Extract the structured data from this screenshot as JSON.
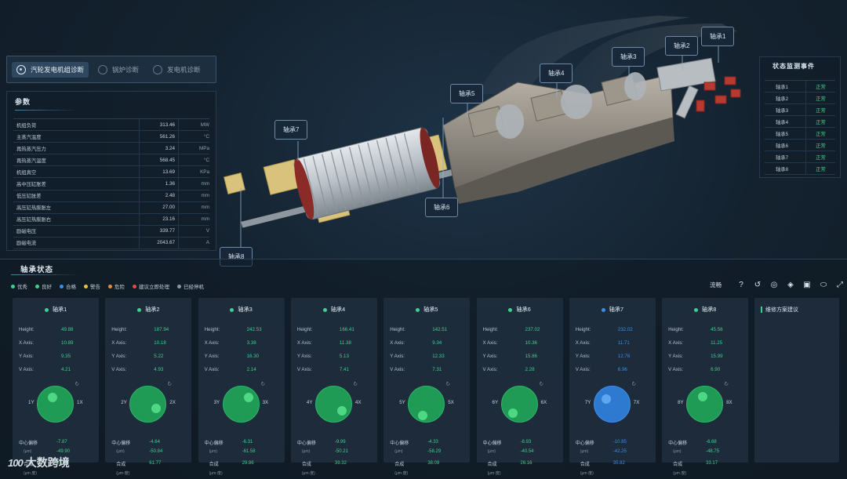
{
  "tabs": [
    {
      "label": "汽轮发电机组诊断",
      "active": true
    },
    {
      "label": "锅炉诊断",
      "active": false
    },
    {
      "label": "发电机诊断",
      "active": false
    }
  ],
  "params": {
    "title": "参数",
    "rows": [
      {
        "name": "机组负荷",
        "value": "313.46",
        "unit": "MW"
      },
      {
        "name": "主蒸汽温度",
        "value": "561.26",
        "unit": "°C"
      },
      {
        "name": "再热蒸汽压力",
        "value": "3.24",
        "unit": "MPa"
      },
      {
        "name": "再热蒸汽温度",
        "value": "568.45",
        "unit": "°C"
      },
      {
        "name": "机组真空",
        "value": "13.69",
        "unit": "KPa"
      },
      {
        "name": "高中压缸胀差",
        "value": "1.36",
        "unit": "mm"
      },
      {
        "name": "低压缸胀差",
        "value": "2.48",
        "unit": "mm"
      },
      {
        "name": "高压缸热膨胀左",
        "value": "27.00",
        "unit": "mm"
      },
      {
        "name": "高压缸热膨胀右",
        "value": "23.16",
        "unit": "mm"
      },
      {
        "name": "励磁电压",
        "value": "339.77",
        "unit": "V"
      },
      {
        "name": "励磁电流",
        "value": "2043.67",
        "unit": "A"
      }
    ]
  },
  "callouts": {
    "b1": "轴承1",
    "b2": "轴承2",
    "b3": "轴承3",
    "b4": "轴承4",
    "b5": "轴承5",
    "b6": "轴承6",
    "b7": "轴承7",
    "b8": "轴承8"
  },
  "events": {
    "title": "状态监测事件",
    "rows": [
      {
        "name": "轴承1",
        "status": "正常"
      },
      {
        "name": "轴承2",
        "status": "正常"
      },
      {
        "name": "轴承3",
        "status": "正常"
      },
      {
        "name": "轴承4",
        "status": "正常"
      },
      {
        "name": "轴承5",
        "status": "正常"
      },
      {
        "name": "轴承6",
        "status": "正常"
      },
      {
        "name": "轴承7",
        "status": "正常"
      },
      {
        "name": "轴承8",
        "status": "正常"
      }
    ]
  },
  "bearing_section": {
    "title": "轴承状态",
    "legend": [
      {
        "label": "优秀",
        "color": "#3ecf8e"
      },
      {
        "label": "良好",
        "color": "#3ecf8e"
      },
      {
        "label": "合格",
        "color": "#3a8de8"
      },
      {
        "label": "警告",
        "color": "#e8c23a"
      },
      {
        "label": "危险",
        "color": "#e8893a"
      },
      {
        "label": "建议立即处理",
        "color": "#e84a4a"
      },
      {
        "label": "已经停机",
        "color": "#8a96a0"
      }
    ],
    "toolbar": {
      "mode_label": "流畅",
      "icons": [
        "help-icon",
        "refresh-icon",
        "target-icon",
        "layers-icon",
        "camera-icon",
        "gamepad-icon",
        "fullscreen-icon"
      ]
    },
    "labels": {
      "height": "Height:",
      "x_axis": "X Axis:",
      "y_axis": "Y Axis:",
      "v_axis": "V Axis:",
      "offset": "中心偏移",
      "offset_unit": "(μm)",
      "combined": "合成",
      "combined_unit": "(μm·度)"
    },
    "bearings": [
      {
        "name": "轴承1",
        "status_color": "#3ecf8e",
        "height": "49.88",
        "x": "10.89",
        "y": "9.35",
        "v": "4.21",
        "ylabel": "1Y",
        "xlabel": "1X",
        "gx": 0.4,
        "gy": 0.3,
        "off1": "-7.87",
        "off2": "-49.90",
        "comb": "25.48"
      },
      {
        "name": "轴承2",
        "status_color": "#3ecf8e",
        "height": "187.94",
        "x": "10.18",
        "y": "5.22",
        "v": "4.93",
        "ylabel": "2Y",
        "xlabel": "2X",
        "gx": 0.7,
        "gy": 0.6,
        "off1": "-4.64",
        "off2": "-50.84",
        "comb": "61.77"
      },
      {
        "name": "轴承3",
        "status_color": "#3ecf8e",
        "height": "242.53",
        "x": "3.38",
        "y": "16.30",
        "v": "2.14",
        "ylabel": "3Y",
        "xlabel": "3X",
        "gx": 0.7,
        "gy": 0.3,
        "off1": "-6.31",
        "off2": "-61.58",
        "comb": "29.86"
      },
      {
        "name": "轴承4",
        "status_color": "#3ecf8e",
        "height": "166.41",
        "x": "11.38",
        "y": "5.13",
        "v": "7.41",
        "ylabel": "4Y",
        "xlabel": "4X",
        "gx": 0.7,
        "gy": 0.65,
        "off1": "-9.99",
        "off2": "-50.21",
        "comb": "39.32"
      },
      {
        "name": "轴承5",
        "status_color": "#3ecf8e",
        "height": "142.51",
        "x": "9.34",
        "y": "12.33",
        "v": "7.31",
        "ylabel": "5Y",
        "xlabel": "5X",
        "gx": 0.38,
        "gy": 0.78,
        "off1": "-4.33",
        "off2": "-58.29",
        "comb": "38.09"
      },
      {
        "name": "轴承6",
        "status_color": "#3ecf8e",
        "height": "237.02",
        "x": "10.36",
        "y": "15.86",
        "v": "2.28",
        "ylabel": "6Y",
        "xlabel": "6X",
        "gx": 0.3,
        "gy": 0.72,
        "off1": "-8.93",
        "off2": "-40.54",
        "comb": "26.16"
      },
      {
        "name": "轴承7",
        "status_color": "#3a8de8",
        "height": "232.02",
        "x": "11.71",
        "y": "12.76",
        "v": "6.96",
        "ylabel": "7Y",
        "xlabel": "7X",
        "gx": 0.32,
        "gy": 0.35,
        "off1": "-10.85",
        "off2": "-42.25",
        "comb": "35.82",
        "blue": true
      },
      {
        "name": "轴承8",
        "status_color": "#3ecf8e",
        "height": "45.56",
        "x": "11.25",
        "y": "15.99",
        "v": "6.90",
        "ylabel": "8Y",
        "xlabel": "8X",
        "gx": 0.42,
        "gy": 0.28,
        "off1": "-6.68",
        "off2": "-48.75",
        "comb": "33.17"
      }
    ],
    "plan_title": "维修方案建议"
  },
  "watermark": "大数跨境",
  "watermark_logo": "100"
}
